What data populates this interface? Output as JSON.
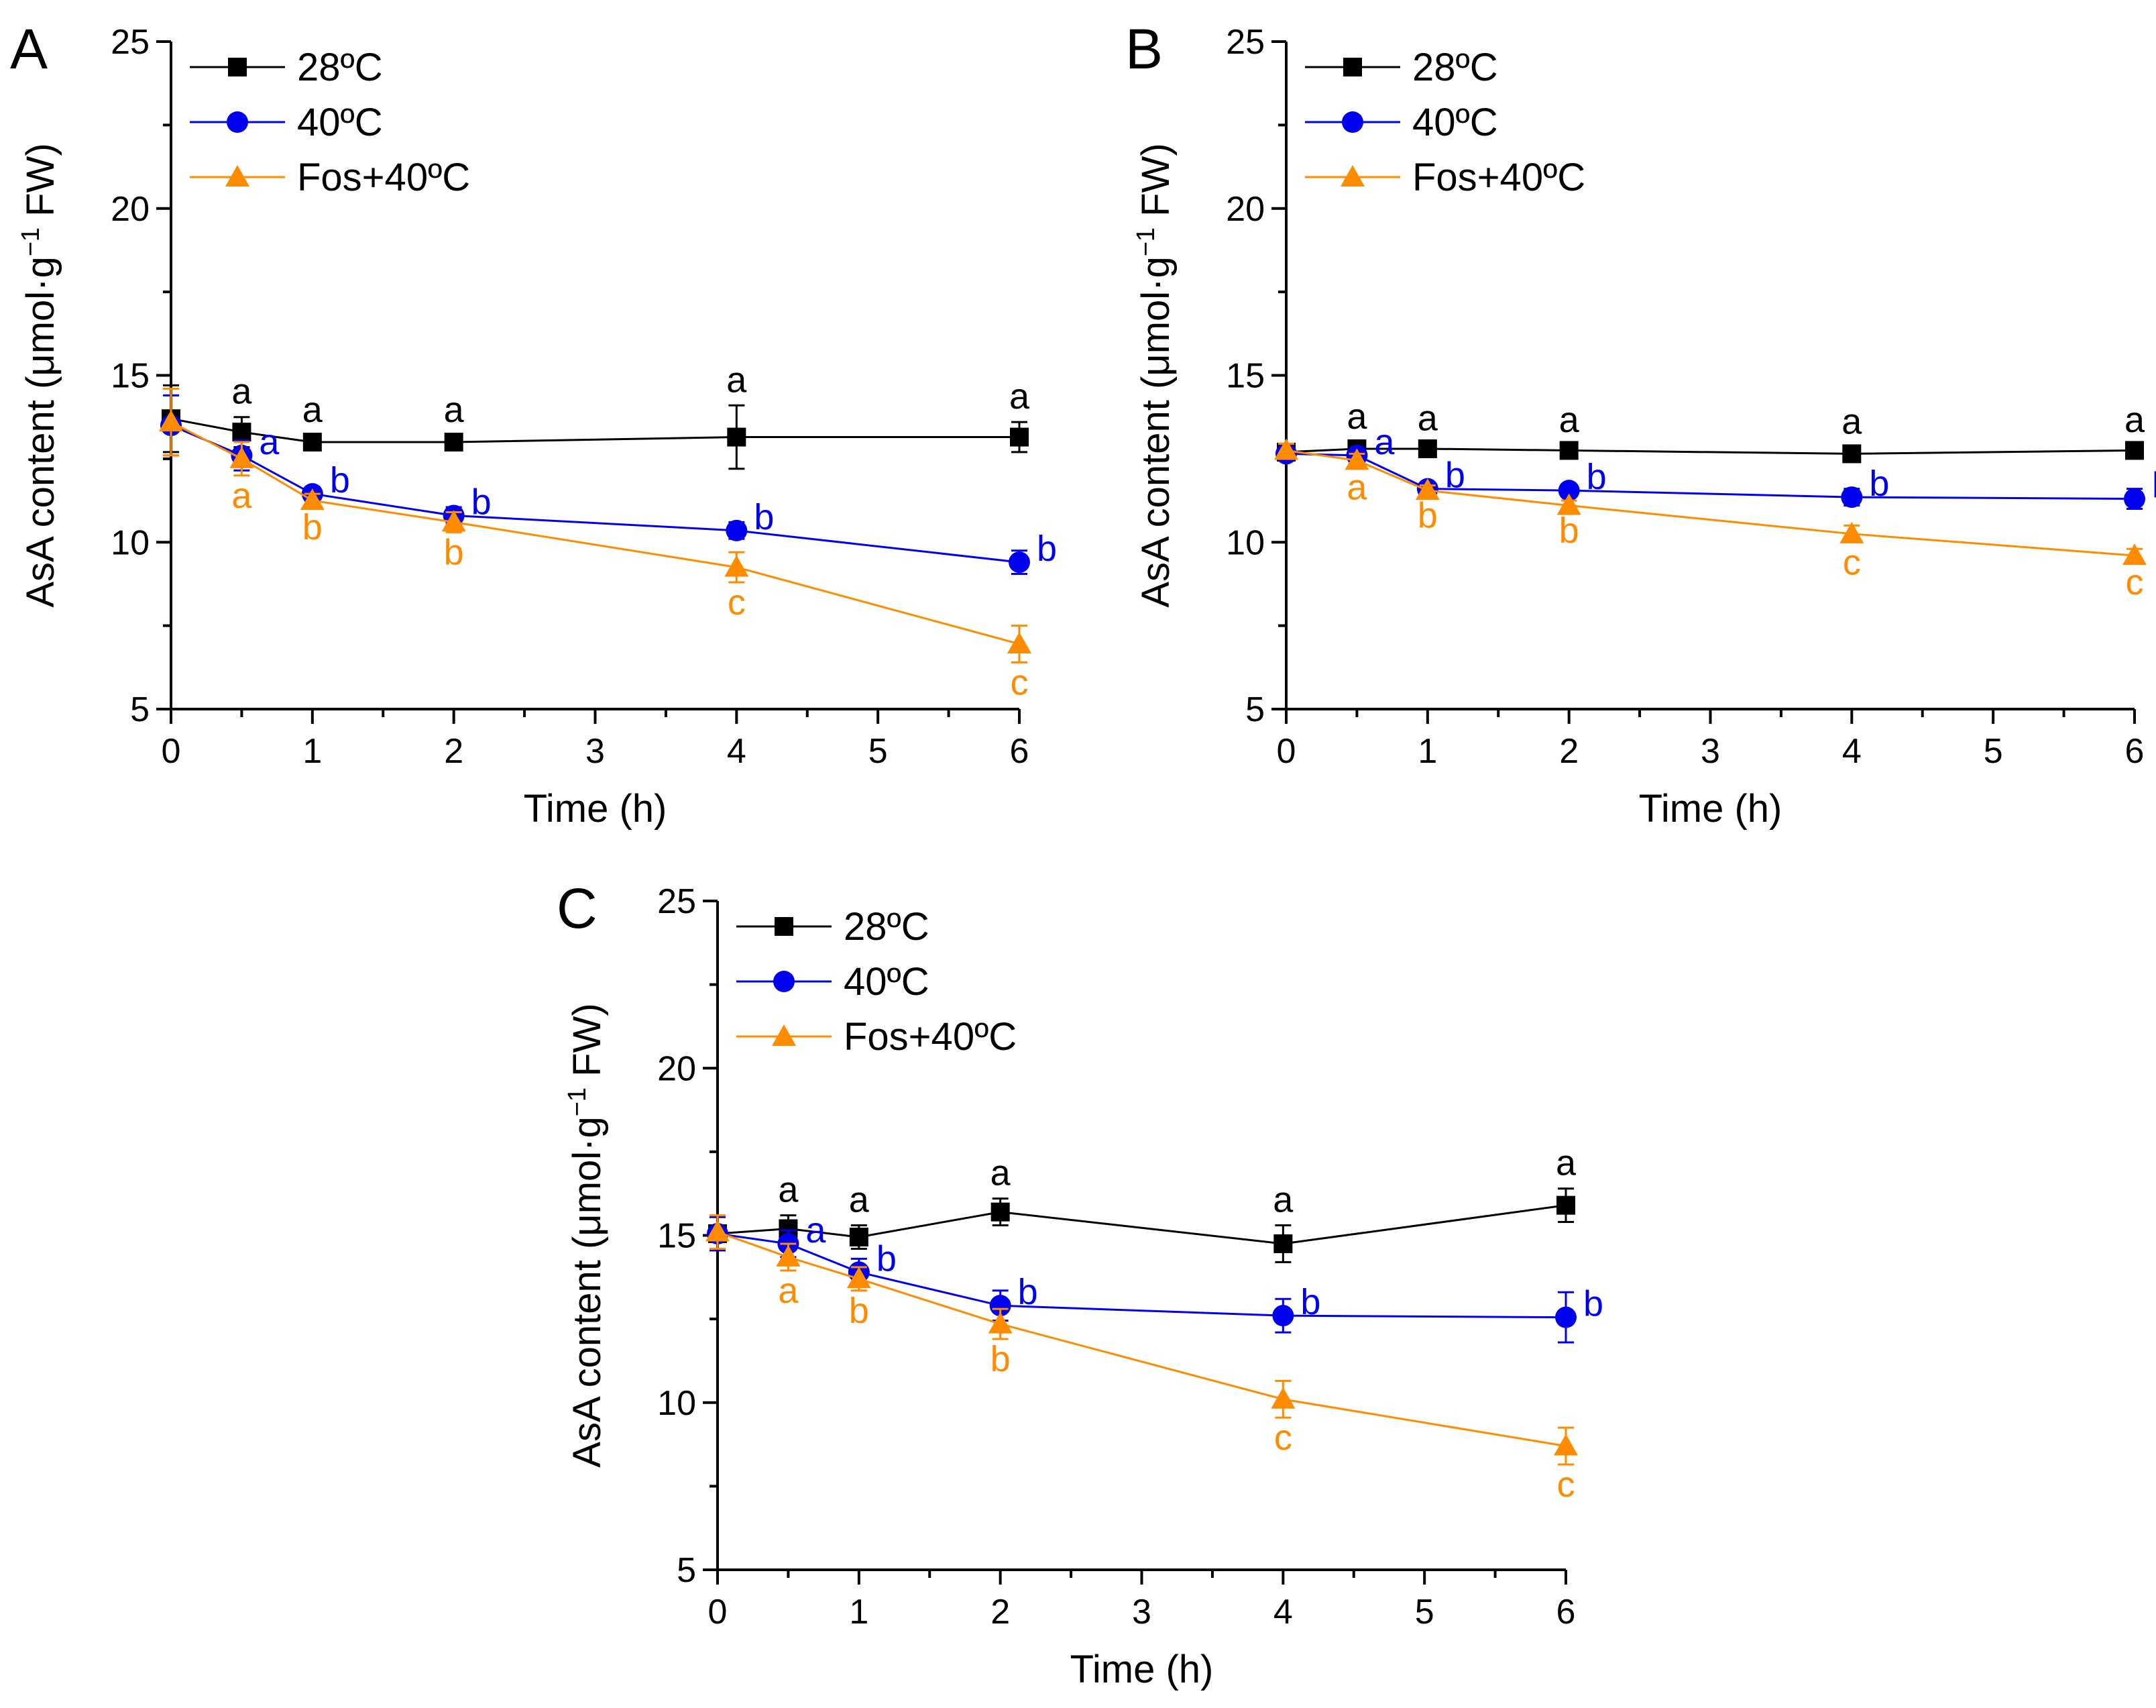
{
  "figure": {
    "colors": {
      "c28": "#000000",
      "c40": "#0000ee",
      "cfos": "#ff8c00"
    }
  },
  "chart_data": [
    {
      "type": "line",
      "panel": "A",
      "xlabel": "Time (h)",
      "ylabel_pre": "AsA content (μmol·g",
      "ylabel_sup": "−1",
      "ylabel_post": " FW)",
      "xlim": [
        0,
        6
      ],
      "ylim": [
        5,
        25
      ],
      "xticks": [
        "0",
        "1",
        "2",
        "3",
        "4",
        "5",
        "6"
      ],
      "yticks": [
        "5",
        "10",
        "15",
        "20",
        "25"
      ],
      "x": [
        0,
        0.5,
        1,
        2,
        4,
        6
      ],
      "series": [
        {
          "name": "28ºC",
          "marker": "square",
          "color": "#000000",
          "values": [
            13.7,
            13.3,
            13.0,
            13.0,
            13.15,
            13.15
          ],
          "errors": [
            1.0,
            0.45,
            0.2,
            0.2,
            0.95,
            0.45
          ],
          "letters": [
            "",
            "a",
            "a",
            "a",
            "a",
            "a"
          ]
        },
        {
          "name": "40ºC",
          "marker": "circle",
          "color": "#0000ee",
          "values": [
            13.5,
            12.6,
            11.45,
            10.8,
            10.35,
            9.4
          ],
          "errors": [
            0.9,
            0.45,
            0.2,
            0.25,
            0.25,
            0.35
          ],
          "letters": [
            "",
            "a",
            "b",
            "b",
            "b",
            "b"
          ]
        },
        {
          "name": "Fos+40ºC",
          "marker": "triangle",
          "color": "#ff8c00",
          "values": [
            13.6,
            12.5,
            11.25,
            10.6,
            9.25,
            6.95
          ],
          "errors": [
            1.0,
            0.5,
            0.2,
            0.3,
            0.45,
            0.55
          ],
          "letters": [
            "",
            "a",
            "b",
            "b",
            "c",
            "c"
          ]
        }
      ]
    },
    {
      "type": "line",
      "panel": "B",
      "xlabel": "Time (h)",
      "ylabel_pre": "AsA content (μmol·g",
      "ylabel_sup": "−1",
      "ylabel_post": " FW)",
      "xlim": [
        0,
        6
      ],
      "ylim": [
        5,
        25
      ],
      "xticks": [
        "0",
        "1",
        "2",
        "3",
        "4",
        "5",
        "6"
      ],
      "yticks": [
        "5",
        "10",
        "15",
        "20",
        "25"
      ],
      "x": [
        0,
        0.5,
        1,
        2,
        4,
        6
      ],
      "series": [
        {
          "name": "28ºC",
          "marker": "square",
          "color": "#000000",
          "values": [
            12.7,
            12.8,
            12.8,
            12.75,
            12.65,
            12.75
          ],
          "errors": [
            0.2,
            0.2,
            0.15,
            0.15,
            0.2,
            0.15
          ],
          "letters": [
            "",
            "a",
            "a",
            "a",
            "a",
            "a"
          ]
        },
        {
          "name": "40ºC",
          "marker": "circle",
          "color": "#0000ee",
          "values": [
            12.65,
            12.6,
            11.6,
            11.55,
            11.35,
            11.3
          ],
          "errors": [
            0.2,
            0.2,
            0.15,
            0.15,
            0.25,
            0.3
          ],
          "letters": [
            "",
            "a",
            "b",
            "b",
            "b",
            "b"
          ]
        },
        {
          "name": "Fos+40ºC",
          "marker": "triangle",
          "color": "#ff8c00",
          "values": [
            12.75,
            12.45,
            11.55,
            11.1,
            10.25,
            9.6
          ],
          "errors": [
            0.2,
            0.2,
            0.15,
            0.15,
            0.25,
            0.2
          ],
          "letters": [
            "",
            "a",
            "b",
            "b",
            "c",
            "c"
          ]
        }
      ]
    },
    {
      "type": "line",
      "panel": "C",
      "xlabel": "Time (h)",
      "ylabel_pre": "AsA content (μmol·g",
      "ylabel_sup": "−1",
      "ylabel_post": " FW)",
      "xlim": [
        0,
        6
      ],
      "ylim": [
        5,
        25
      ],
      "xticks": [
        "0",
        "1",
        "2",
        "3",
        "4",
        "5",
        "6"
      ],
      "yticks": [
        "5",
        "10",
        "15",
        "20",
        "25"
      ],
      "x": [
        0,
        0.5,
        1,
        2,
        4,
        6
      ],
      "series": [
        {
          "name": "28ºC",
          "marker": "square",
          "color": "#000000",
          "values": [
            15.05,
            15.2,
            14.95,
            15.7,
            14.75,
            15.9
          ],
          "errors": [
            0.5,
            0.4,
            0.35,
            0.4,
            0.55,
            0.5
          ],
          "letters": [
            "",
            "a",
            "a",
            "a",
            "a",
            "a"
          ]
        },
        {
          "name": "40ºC",
          "marker": "circle",
          "color": "#0000ee",
          "values": [
            15.05,
            14.75,
            13.9,
            12.9,
            12.6,
            12.55
          ],
          "errors": [
            0.5,
            0.4,
            0.4,
            0.45,
            0.5,
            0.75
          ],
          "letters": [
            "",
            "a",
            "b",
            "b",
            "b",
            "b"
          ]
        },
        {
          "name": "Fos+40ºC",
          "marker": "triangle",
          "color": "#ff8c00",
          "values": [
            15.1,
            14.35,
            13.7,
            12.35,
            10.1,
            8.7
          ],
          "errors": [
            0.5,
            0.4,
            0.35,
            0.45,
            0.55,
            0.55
          ],
          "letters": [
            "",
            "a",
            "b",
            "b",
            "c",
            "c"
          ]
        }
      ]
    }
  ]
}
